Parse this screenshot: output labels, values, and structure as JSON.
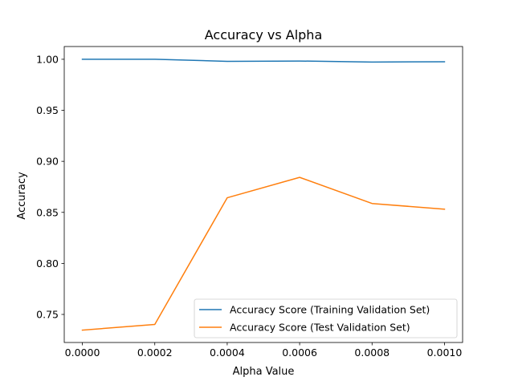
{
  "chart_data": {
    "type": "line",
    "title": "Accuracy vs Alpha",
    "xlabel": "Alpha Value",
    "ylabel": "Accuracy",
    "x": [
      0.0,
      0.0002,
      0.0004,
      0.0006,
      0.0008,
      0.001
    ],
    "xlim": [
      -5e-05,
      0.00105
    ],
    "ylim": [
      0.7225,
      1.0125
    ],
    "xticks": [
      0.0,
      0.0002,
      0.0004,
      0.0006,
      0.0008,
      0.001
    ],
    "xtick_labels": [
      "0.0000",
      "0.0002",
      "0.0004",
      "0.0006",
      "0.0008",
      "0.0010"
    ],
    "yticks": [
      0.75,
      0.8,
      0.85,
      0.9,
      0.95,
      1.0
    ],
    "ytick_labels": [
      "0.75",
      "0.80",
      "0.85",
      "0.90",
      "0.95",
      "1.00"
    ],
    "grid": false,
    "legend_position": "lower-right",
    "series": [
      {
        "name": "Accuracy Score (Training Validation Set)",
        "color": "#1f77b4",
        "values": [
          1.0,
          1.0,
          0.998,
          0.9983,
          0.9973,
          0.9976
        ]
      },
      {
        "name": "Accuracy Score (Test Validation Set)",
        "color": "#ff7f0e",
        "values": [
          0.7346,
          0.7402,
          0.8643,
          0.8843,
          0.8587,
          0.8531
        ]
      }
    ]
  }
}
